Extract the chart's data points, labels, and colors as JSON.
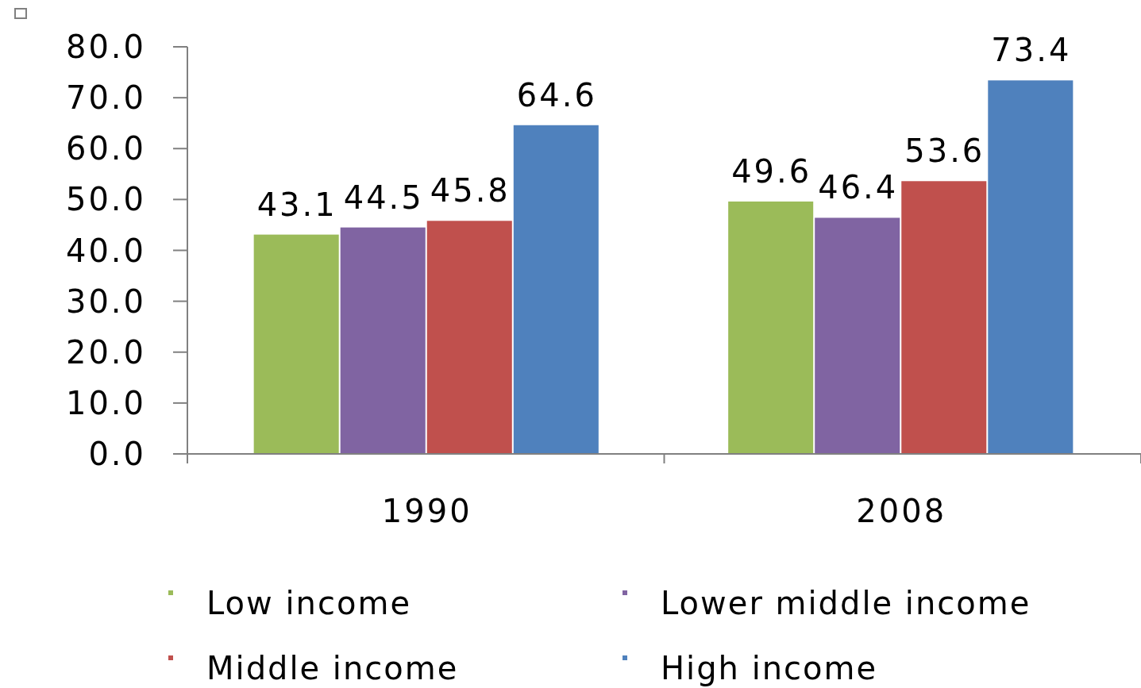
{
  "chart_data": {
    "type": "bar",
    "categories": [
      "1990",
      "2008"
    ],
    "series": [
      {
        "name": "Low income",
        "color": "#9bbb59",
        "values": [
          43.1,
          49.6
        ]
      },
      {
        "name": "Lower middle income",
        "color": "#8064a2",
        "values": [
          44.5,
          46.4
        ]
      },
      {
        "name": "Middle income",
        "color": "#c0504d",
        "values": [
          45.8,
          53.6
        ]
      },
      {
        "name": "High income",
        "color": "#4f81bd",
        "values": [
          64.6,
          73.4
        ]
      }
    ],
    "ylim": [
      0,
      80
    ],
    "yticks": [
      {
        "value": 0,
        "label": "0.0"
      },
      {
        "value": 10,
        "label": "10.0"
      },
      {
        "value": 20,
        "label": "20.0"
      },
      {
        "value": 30,
        "label": "30.0"
      },
      {
        "value": 40,
        "label": "40.0"
      },
      {
        "value": 50,
        "label": "50.0"
      },
      {
        "value": 60,
        "label": "60.0"
      },
      {
        "value": 70,
        "label": "70.0"
      },
      {
        "value": 80,
        "label": "80.0"
      }
    ],
    "data_labels": true,
    "grid": false,
    "legend": "bottom"
  }
}
